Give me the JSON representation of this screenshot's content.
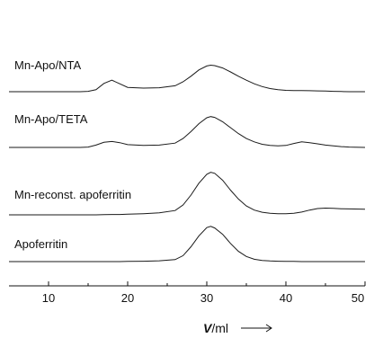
{
  "chart_data": {
    "type": "line",
    "xlabel_var": "V",
    "xlabel_unit": "/ml",
    "xlim": [
      5,
      50
    ],
    "xticks": [
      10,
      20,
      30,
      40,
      50
    ],
    "x": [
      5,
      10,
      14,
      15,
      16,
      17,
      18,
      19,
      20,
      22,
      24,
      26,
      27,
      28,
      29,
      30,
      30.5,
      31,
      32,
      33,
      34,
      35,
      36,
      37,
      38,
      39,
      40,
      41,
      42,
      43,
      44,
      45,
      46,
      47,
      48,
      50
    ],
    "series": [
      {
        "name": "Mn-Apo/NTA",
        "baseline_rank": 4,
        "values": [
          0,
          0,
          0,
          0.02,
          0.1,
          0.42,
          0.58,
          0.4,
          0.22,
          0.18,
          0.2,
          0.3,
          0.5,
          0.78,
          1.1,
          1.3,
          1.34,
          1.32,
          1.2,
          1.0,
          0.78,
          0.58,
          0.4,
          0.26,
          0.16,
          0.1,
          0.07,
          0.06,
          0.06,
          0.05,
          0.04,
          0.03,
          0.02,
          0.01,
          0,
          0
        ]
      },
      {
        "name": "Mn-Apo/TETA",
        "baseline_rank": 3,
        "values": [
          0,
          0,
          0,
          0.02,
          0.12,
          0.26,
          0.3,
          0.24,
          0.14,
          0.1,
          0.12,
          0.22,
          0.45,
          0.8,
          1.2,
          1.5,
          1.56,
          1.52,
          1.3,
          1.0,
          0.7,
          0.45,
          0.28,
          0.16,
          0.1,
          0.08,
          0.1,
          0.2,
          0.28,
          0.24,
          0.18,
          0.12,
          0.08,
          0.04,
          0.02,
          0
        ]
      },
      {
        "name": "Mn-reconst. apoferritin",
        "baseline_rank": 2,
        "values": [
          0,
          0,
          0,
          0,
          0,
          0.01,
          0.02,
          0.02,
          0.03,
          0.06,
          0.1,
          0.22,
          0.5,
          1.0,
          1.6,
          2.05,
          2.15,
          2.1,
          1.75,
          1.25,
          0.8,
          0.45,
          0.24,
          0.13,
          0.08,
          0.06,
          0.06,
          0.08,
          0.14,
          0.24,
          0.32,
          0.34,
          0.33,
          0.31,
          0.3,
          0.28
        ]
      },
      {
        "name": "Apoferritin",
        "baseline_rank": 1,
        "values": [
          0,
          0,
          0,
          0,
          0,
          0,
          0,
          0,
          0.01,
          0.02,
          0.04,
          0.1,
          0.3,
          0.75,
          1.3,
          1.72,
          1.78,
          1.7,
          1.38,
          0.92,
          0.52,
          0.26,
          0.12,
          0.06,
          0.03,
          0.02,
          0.01,
          0.01,
          0,
          0,
          0,
          0,
          0,
          0,
          0,
          0
        ]
      }
    ]
  }
}
